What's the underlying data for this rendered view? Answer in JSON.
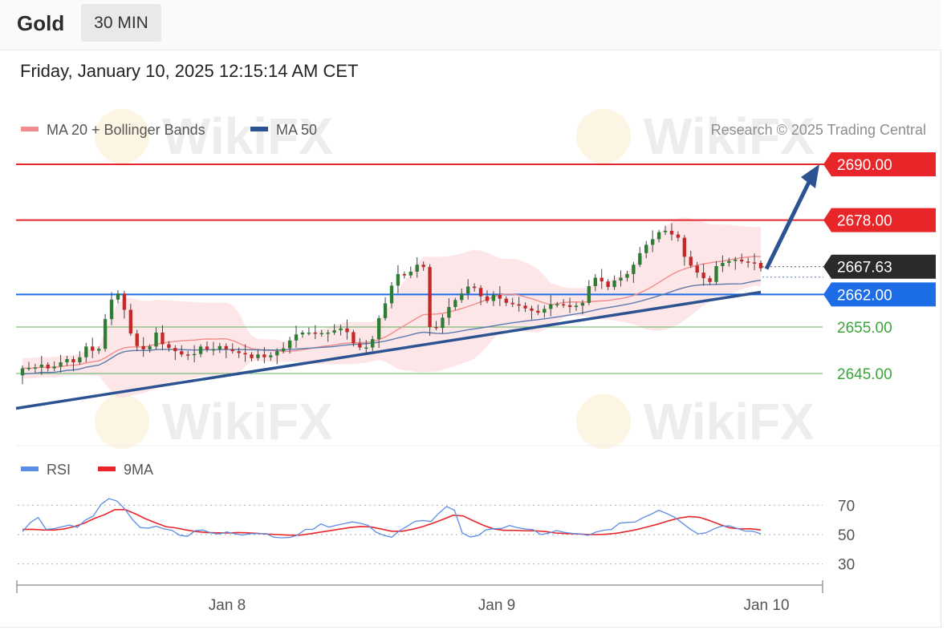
{
  "header": {
    "title": "Gold",
    "timeframe": "30 MIN"
  },
  "timestamp": "Friday, January 10, 2025 12:15:14 AM CET",
  "legend": {
    "ma20_label": "MA 20 + Bollinger Bands",
    "ma50_label": "MA 50",
    "rsi_label": "RSI",
    "ma9_label": "9MA"
  },
  "copyright": "Research © 2025 Trading Central",
  "watermark": "WikiFX",
  "colors": {
    "resistance": "#e8262a",
    "pivot": "#1d6ee6",
    "support": "#3aa53a",
    "trendline": "#2b5392",
    "bollinger_fill": "#fde2e3",
    "ma20": "#f28c8c",
    "ma50": "#5b7bb0",
    "candle_up": "#2e7d32",
    "candle_down": "#c62828",
    "rsi": "#5b8de6",
    "ma9": "#e8262a"
  },
  "chart_data": {
    "type": "candlestick",
    "symbol": "Gold",
    "interval": "30 MIN",
    "x_ticks": [
      "Jan 8",
      "Jan 9",
      "Jan 10"
    ],
    "price_axis": {
      "ylim": [
        2638,
        2695
      ]
    },
    "current_price": {
      "label": "2667.63",
      "value": 2667.63
    },
    "levels": [
      {
        "label": "2690.00",
        "value": 2690.0,
        "role": "resistance 2"
      },
      {
        "label": "2678.00",
        "value": 2678.0,
        "role": "resistance 1"
      },
      {
        "label": "2662.00",
        "value": 2662.0,
        "role": "pivot"
      },
      {
        "label": "2655.00",
        "value": 2655.0,
        "role": "support 1"
      },
      {
        "label": "2645.00",
        "value": 2645.0,
        "role": "support 2"
      }
    ],
    "trendline": {
      "from": [
        "Jan 7",
        2637.5
      ],
      "to": [
        "Jan 10",
        2662.5
      ]
    },
    "projection_arrow": {
      "from": 2667.5,
      "to": 2690.0,
      "direction": "up"
    },
    "candle_closes": [
      2646.1,
      2646.2,
      2646.3,
      2646.9,
      2646.1,
      2646.5,
      2647.4,
      2648.1,
      2647.4,
      2648.5,
      2650.8,
      2649.9,
      2650.3,
      2656.7,
      2660.9,
      2662.2,
      2658.7,
      2653.6,
      2650.9,
      2650.2,
      2650.8,
      2653.8,
      2651.3,
      2650.5,
      2649.8,
      2649.1,
      2649.0,
      2649.2,
      2650.8,
      2650.2,
      2650.2,
      2650.9,
      2650.2,
      2649.8,
      2649.4,
      2649.1,
      2648.3,
      2649.1,
      2648.5,
      2648.9,
      2649.8,
      2650.4,
      2652.1,
      2653.4,
      2653.8,
      2653.8,
      2653.7,
      2653.7,
      2653.8,
      2654.3,
      2654.7,
      2653.9,
      2651.5,
      2650.6,
      2650.6,
      2652.4,
      2656.9,
      2660.1,
      2663.9,
      2666.4,
      2666.1,
      2666.9,
      2668.4,
      2667.9,
      2655.0,
      2654.8,
      2657.0,
      2659.3,
      2660.8,
      2662.2,
      2663.7,
      2663.4,
      2661.6,
      2660.6,
      2661.9,
      2661.1,
      2660.2,
      2659.9,
      2659.6,
      2659.0,
      2658.5,
      2658.1,
      2658.9,
      2659.9,
      2659.9,
      2659.7,
      2659.3,
      2659.6,
      2660.2,
      2663.8,
      2665.6,
      2664.8,
      2663.6,
      2665.0,
      2665.6,
      2666.4,
      2668.4,
      2670.9,
      2672.7,
      2673.9,
      2675.4,
      2675.7,
      2674.9,
      2674.2,
      2670.1,
      2668.2,
      2666.7,
      2665.5,
      2664.7,
      2668.1,
      2668.8,
      2669.2,
      2669.5,
      2669.1,
      2668.9,
      2668.8,
      2667.63
    ],
    "rsi": {
      "ylim": [
        20,
        80
      ],
      "ticks": [
        "70",
        "50",
        "30"
      ],
      "rsi_values": [
        52.0,
        58.2,
        61.7,
        53.6,
        54.0,
        55.3,
        56.5,
        55.0,
        59.9,
        62.6,
        70.6,
        74.5,
        73.0,
        67.6,
        60.3,
        54.8,
        54.4,
        55.7,
        53.9,
        53.0,
        49.6,
        48.8,
        52.7,
        53.1,
        51.1,
        50.4,
        51.8,
        50.6,
        49.7,
        50.6,
        50.6,
        50.7,
        48.2,
        47.8,
        48.0,
        49.6,
        53.5,
        53.6,
        57.3,
        55.1,
        56.4,
        57.5,
        58.7,
        57.7,
        56.3,
        51.7,
        49.5,
        48.2,
        52.6,
        55.8,
        59.1,
        59.6,
        59.0,
        64.5,
        69.2,
        66.6,
        51.1,
        48.4,
        49.4,
        53.2,
        54.0,
        54.2,
        56.2,
        54.8,
        53.8,
        53.4,
        50.0,
        51.0,
        52.8,
        51.5,
        50.8,
        50.5,
        49.5,
        51.7,
        53.0,
        53.5,
        57.8,
        58.3,
        58.6,
        61.5,
        63.8,
        66.6,
        64.4,
        61.9,
        57.9,
        53.8,
        50.5,
        51.2,
        53.8,
        55.7,
        56.0,
        54.2,
        52.4,
        52.3,
        50.5
      ],
      "ma9_values": [
        53.5,
        53.6,
        53.2,
        53.1,
        53.8,
        55.4,
        57.7,
        61.0,
        63.6,
        67.0,
        67.1,
        64.2,
        60.8,
        58.0,
        55.4,
        54.5,
        53.1,
        52.0,
        51.4,
        51.2,
        51.1,
        51.4,
        51.2,
        50.8,
        50.3,
        50.0,
        49.6,
        49.6,
        50.5,
        51.6,
        52.7,
        53.8,
        54.9,
        55.5,
        55.2,
        53.8,
        52.3,
        52.3,
        53.6,
        55.4,
        57.7,
        60.4,
        63.2,
        62.7,
        59.3,
        56.2,
        53.8,
        52.9,
        52.9,
        52.6,
        52.6,
        52.1,
        51.1,
        50.7,
        50.5,
        50.1,
        50.0,
        50.3,
        51.0,
        52.2,
        53.6,
        55.4,
        57.2,
        59.4,
        61.2,
        62.3,
        61.8,
        59.6,
        56.9,
        54.6,
        53.9,
        54.0,
        53.2
      ]
    }
  }
}
